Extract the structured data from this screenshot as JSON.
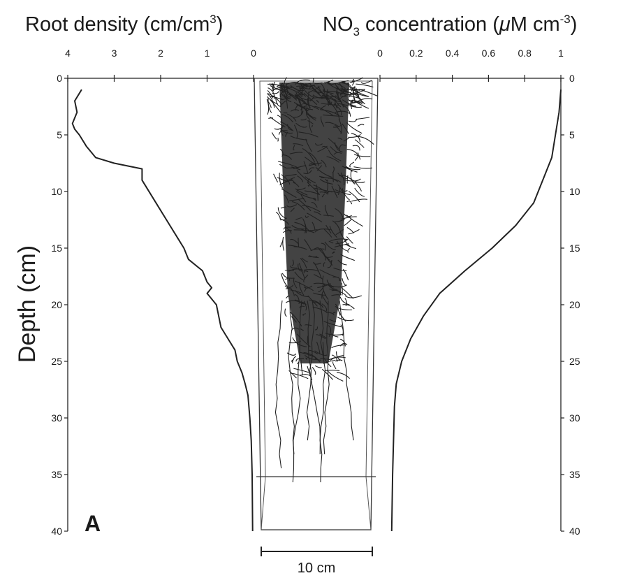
{
  "chart_data": [
    {
      "type": "line",
      "title_main": "Root density (cm/cm",
      "title_sup": "3",
      "title_end": ")",
      "xlabel": "Root density (cm/cm3)",
      "ylabel": "Depth (cm)",
      "x_direction": "reversed",
      "xlim": [
        0,
        4
      ],
      "ylim": [
        0,
        40
      ],
      "y_inverted": true,
      "x_ticks": [
        "4",
        "3",
        "2",
        "1",
        "0"
      ],
      "y_ticks": [
        "0",
        "5",
        "10",
        "15",
        "20",
        "25",
        "30",
        "35",
        "40"
      ],
      "series": [
        {
          "x": [
            3.7,
            3.85,
            3.8,
            3.9,
            3.85,
            3.75,
            3.6,
            3.4,
            3.0,
            2.4,
            2.4,
            2.1,
            1.8,
            1.5,
            1.4,
            1.1,
            1.0,
            0.9,
            1.0,
            0.8,
            0.7,
            0.55,
            0.4,
            0.35,
            0.25,
            0.18,
            0.12,
            0.08,
            0.05,
            0.03,
            0.02
          ],
          "y": [
            1,
            2,
            3,
            4,
            4.5,
            5,
            6,
            7,
            7.5,
            8,
            9,
            11,
            13,
            15,
            16,
            17,
            18,
            18.5,
            19,
            20,
            22,
            23,
            24,
            25,
            26,
            27,
            28,
            30,
            32,
            35,
            40
          ],
          "color": "#222222"
        }
      ]
    },
    {
      "type": "line",
      "title_main": "NO",
      "title_sub": "3",
      "title_mid": " concentration (",
      "title_mu": "μ",
      "title_unit": "M cm",
      "title_sup": "-3",
      "title_end": ")",
      "xlabel": "NO3 concentration (μM cm-3)",
      "xlim": [
        0,
        1
      ],
      "ylim": [
        0,
        40
      ],
      "y_inverted": true,
      "x_ticks": [
        "0",
        "0.2",
        "0.4",
        "0.6",
        "0.8",
        "1"
      ],
      "y_ticks": [
        "0",
        "5",
        "10",
        "15",
        "20",
        "25",
        "30",
        "35",
        "40"
      ],
      "series": [
        {
          "x": [
            1.0,
            0.99,
            0.97,
            0.95,
            0.9,
            0.85,
            0.75,
            0.62,
            0.47,
            0.33,
            0.24,
            0.17,
            0.12,
            0.09,
            0.08,
            0.075,
            0.07,
            0.065
          ],
          "y": [
            1,
            3,
            5,
            7,
            9,
            11,
            13,
            15,
            17,
            19,
            21,
            23,
            25,
            27,
            29,
            32,
            35,
            40
          ],
          "color": "#222222"
        }
      ]
    }
  ],
  "panel_label": "A",
  "scale_bar_label": "10 cm",
  "colors": {
    "ink": "#222222",
    "background": "#ffffff"
  }
}
